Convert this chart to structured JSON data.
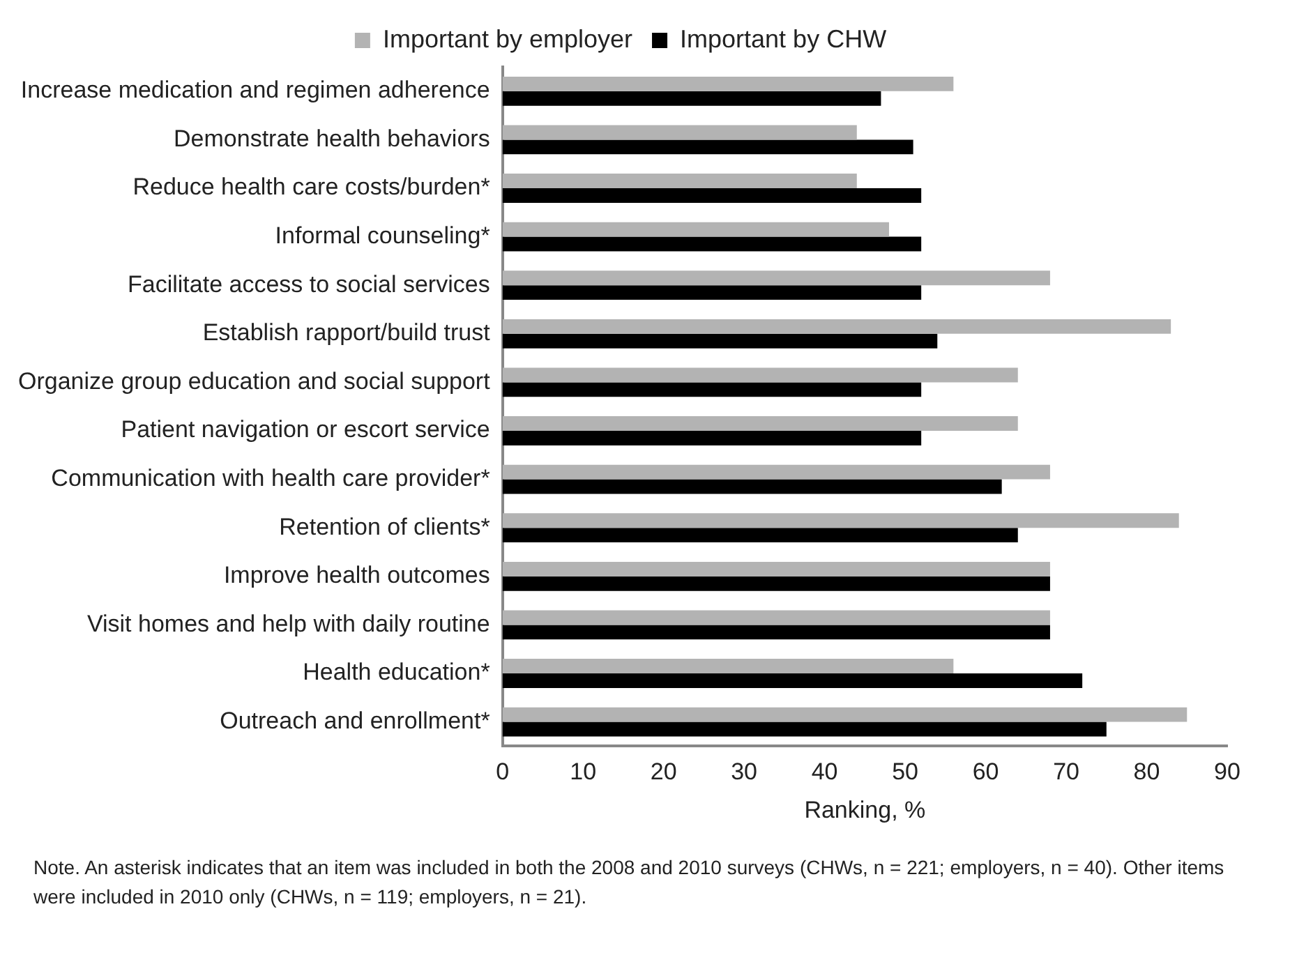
{
  "chart_data": {
    "type": "bar",
    "orientation": "horizontal",
    "xlabel": "Ranking, %",
    "categories": [
      "Increase medication and regimen adherence",
      "Demonstrate health behaviors",
      "Reduce health care costs/burden*",
      "Informal counseling*",
      "Facilitate access to social services",
      "Establish rapport/build trust",
      "Organize group education and social support",
      "Patient navigation or escort service",
      "Communication with health care provider*",
      "Retention of clients*",
      "Improve health outcomes",
      "Visit homes and help with daily routine",
      "Health education*",
      "Outreach and enrollment*"
    ],
    "series": [
      {
        "name": "Important by employer",
        "color": "#b3b3b3",
        "values": [
          56,
          44,
          44,
          48,
          68,
          83,
          64,
          64,
          68,
          84,
          68,
          68,
          56,
          85
        ]
      },
      {
        "name": "Important by CHW",
        "color": "#000000",
        "values": [
          47,
          51,
          52,
          52,
          52,
          54,
          52,
          52,
          62,
          64,
          68,
          68,
          72,
          75
        ]
      }
    ],
    "xlim": [
      0,
      90
    ],
    "xticks": [
      0,
      10,
      20,
      30,
      40,
      50,
      60,
      70,
      80,
      90
    ],
    "grid": false,
    "legend": "top",
    "annotations": [
      "Note. An asterisk indicates that an item was included in both the 2008 and 2010 surveys (CHWs, n = 221; employers, n = 40). Other items were included in 2010 only (CHWs, n = 119; employers, n = 21)."
    ]
  }
}
